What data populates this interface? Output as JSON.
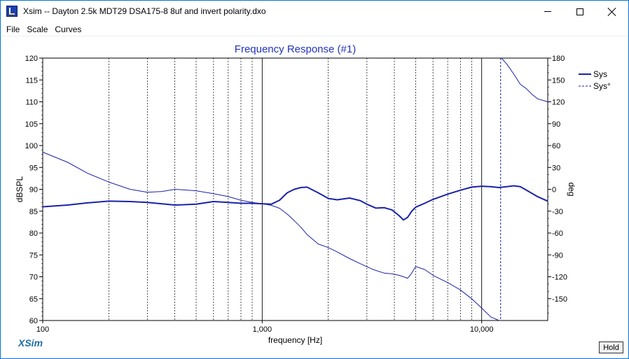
{
  "window": {
    "title": "Xsim -- Dayton 2.5k MDT29 DSA175-8 8uf and invert polarity.dxo"
  },
  "menu": {
    "items": [
      "File",
      "Scale",
      "Curves"
    ]
  },
  "branding": {
    "logo_text": "XSim"
  },
  "hold_button": {
    "label": "Hold"
  },
  "colors": {
    "curve": "#1a22a8",
    "title": "#2233bb",
    "logo": "#1f6fa8",
    "grid": "#000000"
  },
  "chart_data": {
    "type": "line",
    "title": "Frequency Response (#1)",
    "xlabel": "frequency [Hz]",
    "ylabel": "dBSPL",
    "y2label": "deg",
    "x_scale": "log",
    "xlim": [
      100,
      20000
    ],
    "ylim": [
      60,
      120
    ],
    "y2lim": [
      -180,
      180
    ],
    "x_tick_labels": [
      {
        "value": 100,
        "label": "100"
      },
      {
        "value": 1000,
        "label": "1,000"
      },
      {
        "value": 10000,
        "label": "10,000"
      }
    ],
    "y_ticks": [
      120,
      115,
      110,
      105,
      100,
      95,
      90,
      85,
      80,
      75,
      70,
      65,
      60
    ],
    "y2_ticks": [
      180,
      150,
      120,
      90,
      60,
      30,
      0,
      -30,
      -60,
      -90,
      -120,
      -150
    ],
    "grid": true,
    "legend_position": "top-right",
    "series": [
      {
        "name": "Sys",
        "axis": "left",
        "style": "solid-thick",
        "x": [
          100,
          130,
          160,
          200,
          250,
          300,
          400,
          500,
          600,
          700,
          800,
          900,
          1000,
          1100,
          1200,
          1300,
          1400,
          1500,
          1600,
          1800,
          2000,
          2200,
          2500,
          2800,
          3000,
          3300,
          3600,
          3900,
          4200,
          4400,
          4600,
          4800,
          5000,
          5500,
          6000,
          7000,
          8000,
          9000,
          10000,
          11000,
          12000,
          13000,
          14000,
          15000,
          16000,
          18000,
          20000
        ],
        "values": [
          86.0,
          86.4,
          86.9,
          87.3,
          87.2,
          87.0,
          86.4,
          86.6,
          87.2,
          87.0,
          86.8,
          86.8,
          86.7,
          86.6,
          87.5,
          89.2,
          90.0,
          90.4,
          90.5,
          89.2,
          87.9,
          87.6,
          88.0,
          87.4,
          86.6,
          85.7,
          85.8,
          85.3,
          84.0,
          83.0,
          83.6,
          85.0,
          85.9,
          86.8,
          87.7,
          88.9,
          89.8,
          90.5,
          90.7,
          90.6,
          90.4,
          90.6,
          90.8,
          90.6,
          89.8,
          88.3,
          87.3
        ]
      },
      {
        "name": "Sys°",
        "axis": "right",
        "style": "solid-thin",
        "x": [
          100,
          130,
          160,
          200,
          250,
          300,
          350,
          400,
          500,
          600,
          700,
          800,
          900,
          1000,
          1100,
          1200,
          1300,
          1400,
          1500,
          1600,
          1800,
          2000,
          2200,
          2500,
          2800,
          3200,
          3600,
          3900,
          4200,
          4400,
          4600,
          4800,
          5000,
          5500,
          6000,
          7000,
          8000,
          9000,
          10000,
          11000,
          12000
        ],
        "values": [
          51,
          37,
          22,
          10,
          0,
          -4,
          -3,
          0,
          -2,
          -6,
          -10,
          -15,
          -18,
          -20,
          -22,
          -26,
          -34,
          -43,
          -52,
          -62,
          -75,
          -80,
          -86,
          -95,
          -102,
          -110,
          -115,
          -116,
          -118,
          -120,
          -122,
          -115,
          -106,
          -110,
          -118,
          -128,
          -138,
          -150,
          -163,
          -175,
          -180
        ]
      },
      {
        "name": "Sys°",
        "axis": "right",
        "style": "solid-thin",
        "x": [
          12300,
          13000,
          14000,
          15000,
          16000,
          17000,
          18000,
          19000,
          20000
        ],
        "values": [
          180,
          172,
          158,
          144,
          138,
          130,
          124,
          122,
          120
        ]
      }
    ],
    "wrap_line": {
      "x": 12200,
      "style": "dashed"
    },
    "legend": [
      {
        "label": "Sys",
        "style": "solid"
      },
      {
        "label": "Sys°",
        "style": "dashed"
      }
    ]
  }
}
